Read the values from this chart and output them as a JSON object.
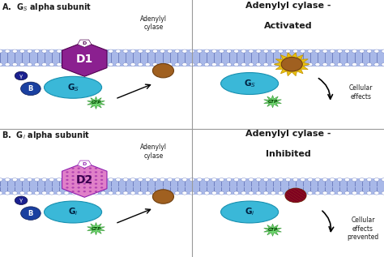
{
  "bg_color": "#ffffff",
  "membrane_color": "#a8b8e8",
  "membrane_head_color": "#ffffff",
  "membrane_tail_color": "#7080c0",
  "gs_color": "#3ab8d8",
  "d1_color": "#8b2090",
  "d2_color": "#e080c8",
  "d2_dot_color": "#b040b0",
  "gamma_color": "#1a2090",
  "beta_color": "#1a40a0",
  "adenylyl_color": "#a06020",
  "gtp_color": "#70d870",
  "gtp_edge_color": "#40a040",
  "yellow_glow_color": "#e8c010",
  "yellow_glow_edge": "#c09000",
  "inhibit_stripe_color": "#800020",
  "section_A_title": "A.  G$_S$ alpha subunit",
  "section_B_title": "B.  G$_i$ alpha subunit",
  "right_top_title1": "Adenylyl cylase -",
  "right_top_title2": "Activated",
  "right_bot_title1": "Adenylyl cylase -",
  "right_bot_title2": "Inhibited",
  "adenylyl_label": "Adenylyl\ncylase",
  "cellular_effects": "Cellular\neffects",
  "cellular_effects_prevented": "Cellular\neffects\nprevented",
  "divider_color": "#999999",
  "text_color": "#1a1a1a"
}
